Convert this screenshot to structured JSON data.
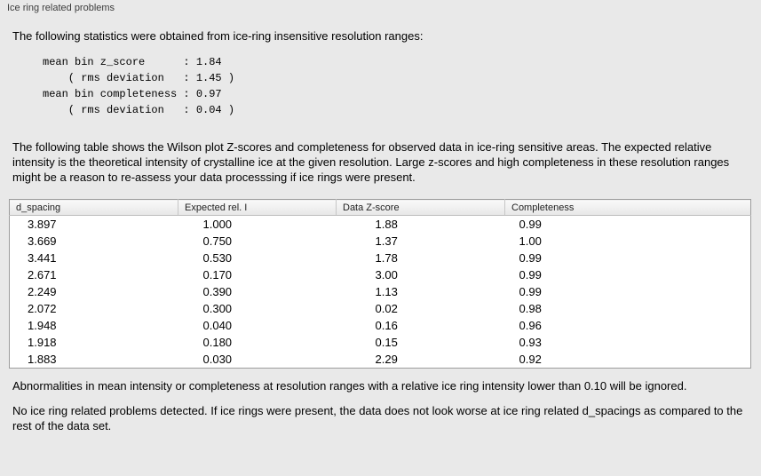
{
  "panel": {
    "title": "Ice ring related problems"
  },
  "intro_text": "The following statistics were obtained from ice-ring insensitive resolution ranges:",
  "stats_block_text": "mean bin z_score      : 1.84\n    ( rms deviation   : 1.45 )\nmean bin completeness : 0.97\n    ( rms deviation   : 0.04 )",
  "stats": {
    "mean_bin_z_score": "1.84",
    "z_score_rms_deviation": "1.45",
    "mean_bin_completeness": "0.97",
    "completeness_rms_deviation": "0.04"
  },
  "description_text": "The following table shows the Wilson plot Z-scores and completeness for observed data in ice-ring sensitive areas. The expected relative intensity is the theoretical intensity of crystalline ice at the given resolution. Large z-scores and high completeness in these resolution ranges might be a reason to re-assess your data processsing if ice rings were present.",
  "table": {
    "headers": [
      "d_spacing",
      "Expected rel. I",
      "Data Z-score",
      "Completeness"
    ],
    "rows": [
      [
        "3.897",
        "1.000",
        "1.88",
        "0.99"
      ],
      [
        "3.669",
        "0.750",
        "1.37",
        "1.00"
      ],
      [
        "3.441",
        "0.530",
        "1.78",
        "0.99"
      ],
      [
        "2.671",
        "0.170",
        "3.00",
        "0.99"
      ],
      [
        "2.249",
        "0.390",
        "1.13",
        "0.99"
      ],
      [
        "2.072",
        "0.300",
        "0.02",
        "0.98"
      ],
      [
        "1.948",
        "0.040",
        "0.16",
        "0.96"
      ],
      [
        "1.918",
        "0.180",
        "0.15",
        "0.93"
      ],
      [
        "1.883",
        "0.030",
        "2.29",
        "0.92"
      ]
    ]
  },
  "ignore_note_text": "Abnormalities in mean intensity or completeness at resolution ranges with a relative ice ring intensity lower than 0.10 will be ignored.",
  "conclusion_text": "No ice ring related problems detected. If ice rings were present, the data does not look worse at ice ring related d_spacings as compared to the rest of the data set."
}
